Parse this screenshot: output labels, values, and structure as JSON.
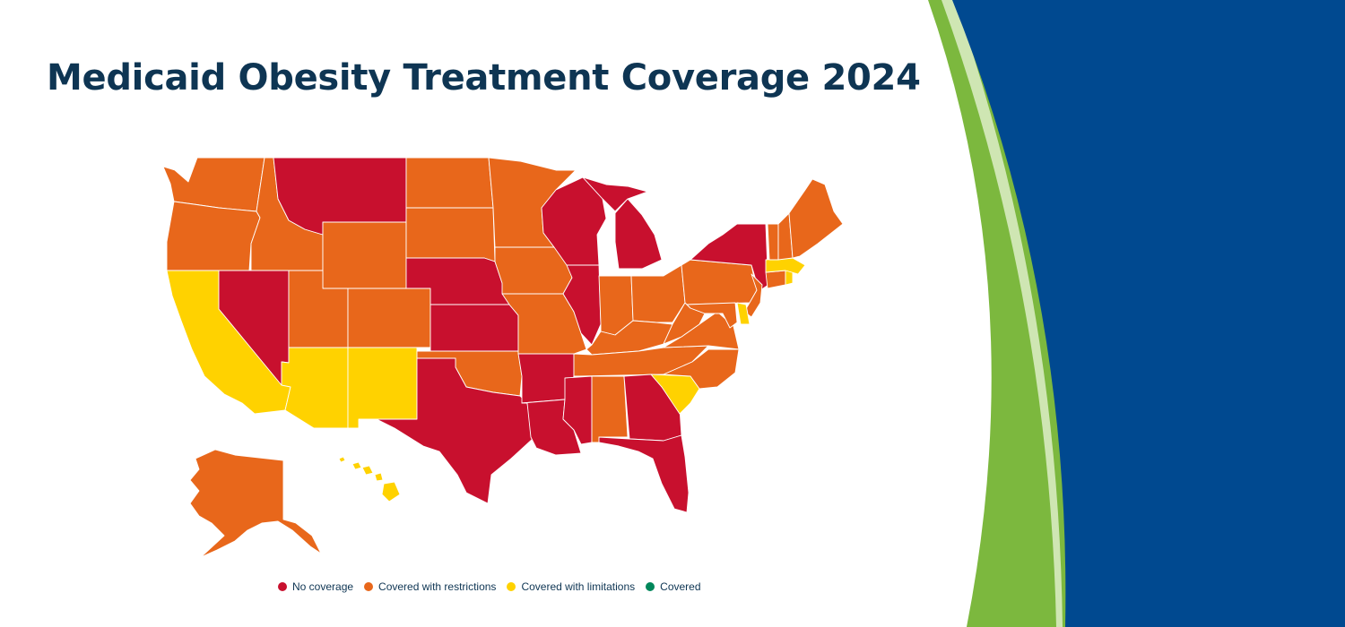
{
  "title": "Medicaid Obesity Treatment Coverage 2024",
  "colors": {
    "no_coverage": "#c8102e",
    "restrictions": "#e8671b",
    "limitations": "#ffd200",
    "covered": "#00875a",
    "navy": "#004990",
    "green": "#7cb83e"
  },
  "legend": [
    {
      "key": "no_coverage",
      "label": "No coverage"
    },
    {
      "key": "restrictions",
      "label": "Covered with restrictions"
    },
    {
      "key": "limitations",
      "label": "Covered with limitations"
    },
    {
      "key": "covered",
      "label": "Covered"
    }
  ],
  "states": {
    "WA": "restrictions",
    "OR": "restrictions",
    "CA": "limitations",
    "NV": "no_coverage",
    "ID": "restrictions",
    "MT": "no_coverage",
    "WY": "restrictions",
    "UT": "restrictions",
    "AZ": "limitations",
    "CO": "restrictions",
    "NM": "limitations",
    "ND": "restrictions",
    "SD": "restrictions",
    "NE": "no_coverage",
    "KS": "no_coverage",
    "OK": "restrictions",
    "TX": "no_coverage",
    "MN": "restrictions",
    "IA": "restrictions",
    "MO": "restrictions",
    "AR": "no_coverage",
    "LA": "no_coverage",
    "WI": "no_coverage",
    "IL": "no_coverage",
    "MI": "no_coverage",
    "IN": "restrictions",
    "OH": "restrictions",
    "KY": "restrictions",
    "TN": "restrictions",
    "MS": "no_coverage",
    "AL": "restrictions",
    "GA": "no_coverage",
    "FL": "no_coverage",
    "SC": "limitations",
    "NC": "restrictions",
    "VA": "restrictions",
    "WV": "restrictions",
    "PA": "restrictions",
    "NY": "no_coverage",
    "VT": "restrictions",
    "NH": "restrictions",
    "ME": "restrictions",
    "MA": "limitations",
    "RI": "limitations",
    "CT": "restrictions",
    "NJ": "restrictions",
    "DE": "limitations",
    "MD": "restrictions",
    "AK": "restrictions",
    "HI": "limitations"
  }
}
